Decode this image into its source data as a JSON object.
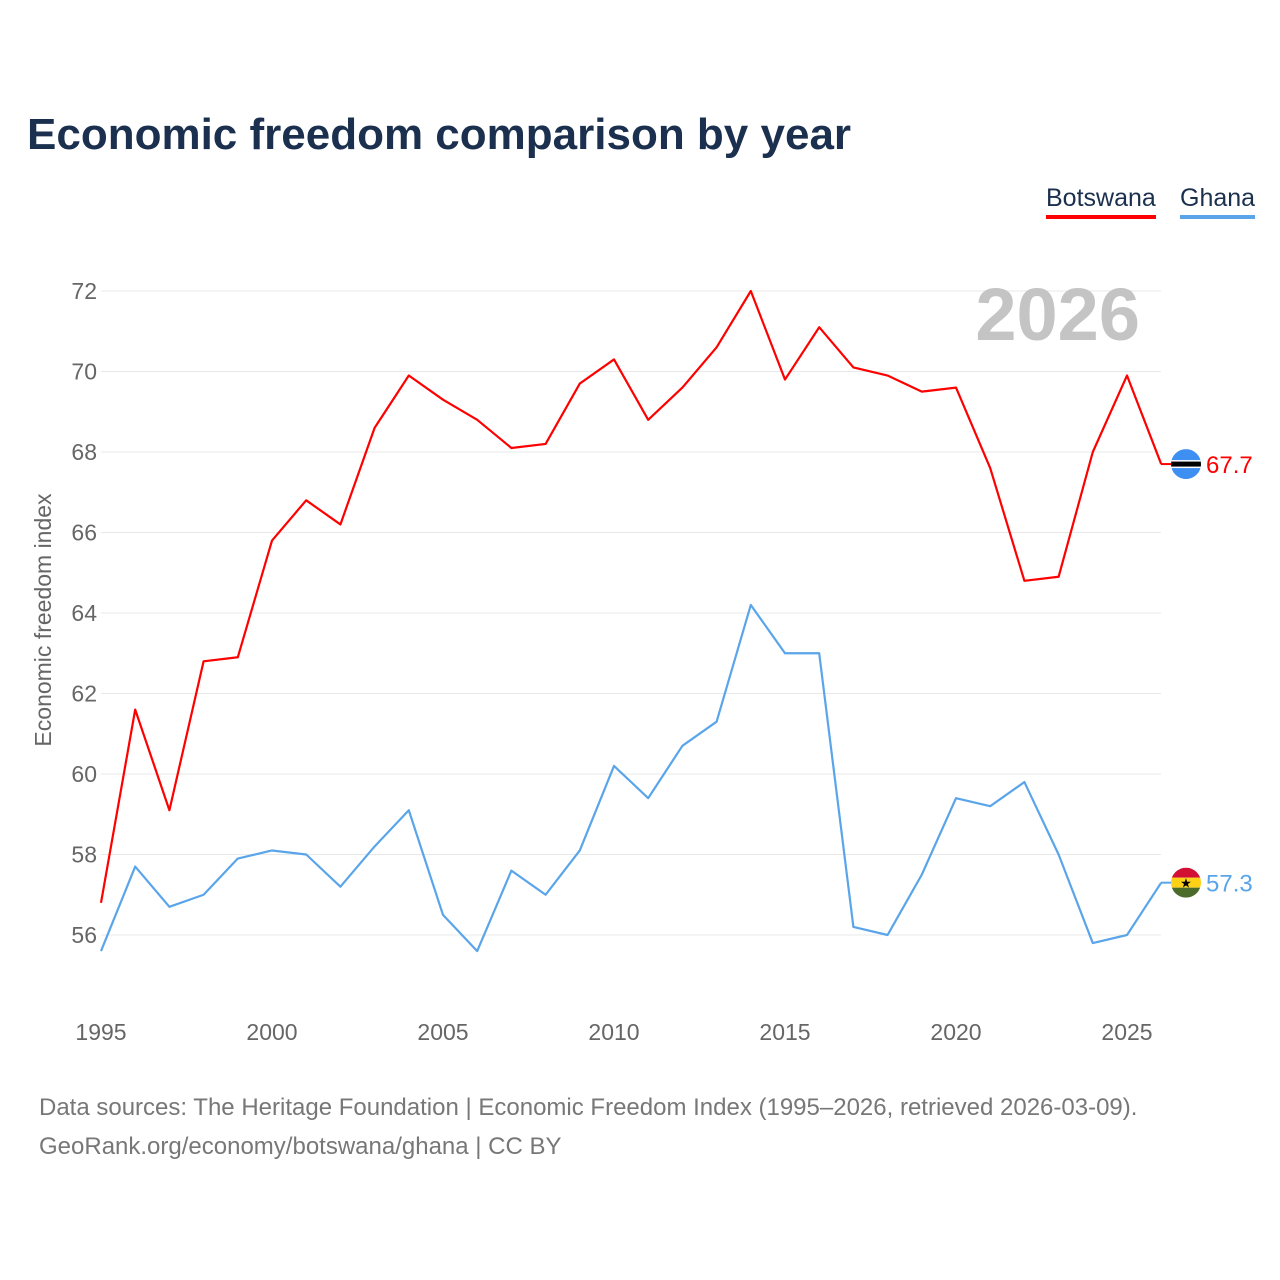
{
  "chart_data": {
    "type": "line",
    "title": "Economic freedom comparison by year",
    "ylabel": "Economic freedom index",
    "xlabel": "",
    "ylim": [
      54.5,
      73
    ],
    "xlim": [
      1995,
      2026
    ],
    "yticks": [
      56,
      58,
      60,
      62,
      64,
      66,
      68,
      70,
      72
    ],
    "xticks": [
      1995,
      2000,
      2005,
      2010,
      2015,
      2020,
      2025
    ],
    "grid": true,
    "legend_position": "top-right",
    "year_watermark": "2026",
    "x": [
      1995,
      1996,
      1997,
      1998,
      1999,
      2000,
      2001,
      2002,
      2003,
      2004,
      2005,
      2006,
      2007,
      2008,
      2009,
      2010,
      2011,
      2012,
      2013,
      2014,
      2015,
      2016,
      2017,
      2018,
      2019,
      2020,
      2021,
      2022,
      2023,
      2024,
      2025,
      2026
    ],
    "series": [
      {
        "name": "Botswana",
        "color": "#ff0000",
        "end_label": "67.7",
        "values": [
          56.8,
          61.6,
          59.1,
          62.8,
          62.9,
          65.8,
          66.8,
          66.2,
          68.6,
          69.9,
          69.3,
          68.8,
          68.1,
          68.2,
          69.7,
          70.3,
          68.8,
          69.6,
          70.6,
          72.0,
          69.8,
          71.1,
          70.1,
          69.9,
          69.5,
          69.6,
          67.6,
          64.8,
          64.9,
          68.0,
          69.9,
          67.7
        ]
      },
      {
        "name": "Ghana",
        "color": "#5aa5ea",
        "end_label": "57.3",
        "values": [
          55.6,
          57.7,
          56.7,
          57.0,
          57.9,
          58.1,
          58.0,
          57.2,
          58.2,
          59.1,
          56.5,
          55.6,
          57.6,
          57.0,
          58.1,
          60.2,
          59.4,
          60.7,
          61.3,
          64.2,
          63.0,
          63.0,
          56.2,
          56.0,
          57.5,
          59.4,
          59.2,
          59.8,
          58.0,
          55.8,
          56.0,
          57.3
        ]
      }
    ]
  },
  "source": {
    "line1": "Data sources: The Heritage Foundation | Economic Freedom Index (1995–2026, retrieved 2026-03-09).",
    "line2": "GeoRank.org/economy/botswana/ghana | CC BY"
  }
}
